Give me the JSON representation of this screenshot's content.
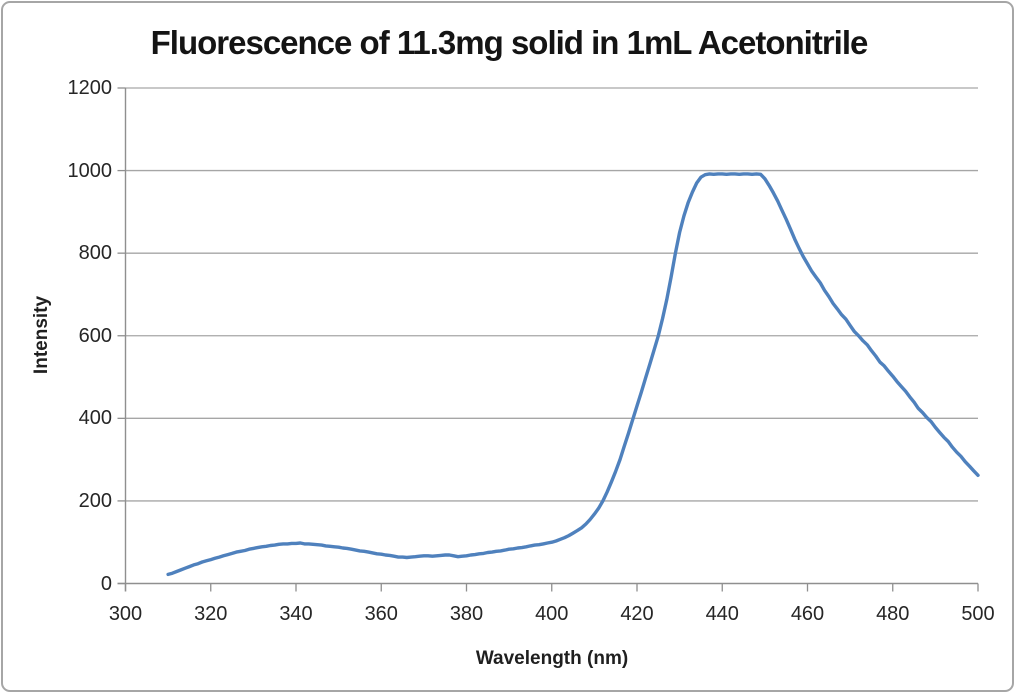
{
  "window": {
    "background": "#ffffff",
    "border_color": "#a6a6a6"
  },
  "chart_data": {
    "type": "line",
    "title": "Fluorescence of 11.3mg solid in 1mL Acetonitrile",
    "xlabel": "Wavelength (nm)",
    "ylabel": "Intensity",
    "xlim": [
      300,
      500
    ],
    "ylim": [
      0,
      1200
    ],
    "x_ticks": [
      300,
      320,
      340,
      360,
      380,
      400,
      420,
      440,
      460,
      480,
      500
    ],
    "y_ticks": [
      0,
      200,
      400,
      600,
      800,
      1000,
      1200
    ],
    "grid": true,
    "legend_position": "none",
    "line_color": "#4f81bd",
    "gridline_color": "#a6a6a6",
    "axis_color": "#8f8f8f",
    "tick_text_color": "#262626",
    "series": [
      {
        "points": [
          [
            310,
            22
          ],
          [
            311,
            25
          ],
          [
            312,
            29
          ],
          [
            313,
            33
          ],
          [
            314,
            37
          ],
          [
            315,
            41
          ],
          [
            316,
            45
          ],
          [
            317,
            48
          ],
          [
            318,
            52
          ],
          [
            319,
            55
          ],
          [
            320,
            58
          ],
          [
            321,
            61
          ],
          [
            322,
            64
          ],
          [
            323,
            67
          ],
          [
            324,
            70
          ],
          [
            325,
            73
          ],
          [
            326,
            76
          ],
          [
            327,
            78
          ],
          [
            328,
            80
          ],
          [
            329,
            83
          ],
          [
            330,
            85
          ],
          [
            331,
            87
          ],
          [
            332,
            89
          ],
          [
            333,
            90
          ],
          [
            334,
            92
          ],
          [
            335,
            93
          ],
          [
            336,
            95
          ],
          [
            337,
            96
          ],
          [
            338,
            96
          ],
          [
            339,
            97
          ],
          [
            340,
            97
          ],
          [
            341,
            98
          ],
          [
            342,
            96
          ],
          [
            343,
            96
          ],
          [
            344,
            95
          ],
          [
            345,
            94
          ],
          [
            346,
            93
          ],
          [
            347,
            91
          ],
          [
            348,
            90
          ],
          [
            349,
            89
          ],
          [
            350,
            88
          ],
          [
            351,
            86
          ],
          [
            352,
            85
          ],
          [
            353,
            83
          ],
          [
            354,
            81
          ],
          [
            355,
            79
          ],
          [
            356,
            78
          ],
          [
            357,
            76
          ],
          [
            358,
            74
          ],
          [
            359,
            72
          ],
          [
            360,
            71
          ],
          [
            361,
            69
          ],
          [
            362,
            68
          ],
          [
            363,
            66
          ],
          [
            364,
            64
          ],
          [
            365,
            64
          ],
          [
            366,
            63
          ],
          [
            367,
            64
          ],
          [
            368,
            65
          ],
          [
            369,
            66
          ],
          [
            370,
            67
          ],
          [
            371,
            67
          ],
          [
            372,
            66
          ],
          [
            373,
            67
          ],
          [
            374,
            68
          ],
          [
            375,
            69
          ],
          [
            376,
            69
          ],
          [
            377,
            67
          ],
          [
            378,
            65
          ],
          [
            379,
            66
          ],
          [
            380,
            67
          ],
          [
            381,
            69
          ],
          [
            382,
            70
          ],
          [
            383,
            72
          ],
          [
            384,
            73
          ],
          [
            385,
            75
          ],
          [
            386,
            76
          ],
          [
            387,
            78
          ],
          [
            388,
            79
          ],
          [
            389,
            81
          ],
          [
            390,
            83
          ],
          [
            391,
            84
          ],
          [
            392,
            86
          ],
          [
            393,
            87
          ],
          [
            394,
            89
          ],
          [
            395,
            91
          ],
          [
            396,
            93
          ],
          [
            397,
            94
          ],
          [
            398,
            96
          ],
          [
            399,
            98
          ],
          [
            400,
            100
          ],
          [
            401,
            103
          ],
          [
            402,
            107
          ],
          [
            403,
            111
          ],
          [
            404,
            116
          ],
          [
            405,
            122
          ],
          [
            406,
            128
          ],
          [
            407,
            135
          ],
          [
            408,
            144
          ],
          [
            409,
            155
          ],
          [
            410,
            168
          ],
          [
            411,
            182
          ],
          [
            412,
            200
          ],
          [
            413,
            222
          ],
          [
            414,
            246
          ],
          [
            415,
            272
          ],
          [
            416,
            300
          ],
          [
            417,
            332
          ],
          [
            418,
            364
          ],
          [
            419,
            397
          ],
          [
            420,
            430
          ],
          [
            421,
            463
          ],
          [
            422,
            497
          ],
          [
            423,
            531
          ],
          [
            424,
            565
          ],
          [
            425,
            600
          ],
          [
            426,
            642
          ],
          [
            427,
            688
          ],
          [
            428,
            742
          ],
          [
            429,
            800
          ],
          [
            430,
            850
          ],
          [
            431,
            890
          ],
          [
            432,
            922
          ],
          [
            433,
            948
          ],
          [
            434,
            970
          ],
          [
            435,
            984
          ],
          [
            436,
            990
          ],
          [
            437,
            992
          ],
          [
            438,
            991
          ],
          [
            439,
            992
          ],
          [
            440,
            992
          ],
          [
            441,
            991
          ],
          [
            442,
            992
          ],
          [
            443,
            992
          ],
          [
            444,
            991
          ],
          [
            445,
            992
          ],
          [
            446,
            992
          ],
          [
            447,
            991
          ],
          [
            448,
            992
          ],
          [
            449,
            991
          ],
          [
            450,
            980
          ],
          [
            451,
            964
          ],
          [
            452,
            946
          ],
          [
            453,
            926
          ],
          [
            454,
            904
          ],
          [
            455,
            882
          ],
          [
            456,
            858
          ],
          [
            457,
            834
          ],
          [
            458,
            812
          ],
          [
            459,
            792
          ],
          [
            460,
            774
          ],
          [
            461,
            756
          ],
          [
            462,
            742
          ],
          [
            463,
            728
          ],
          [
            464,
            710
          ],
          [
            465,
            695
          ],
          [
            466,
            678
          ],
          [
            467,
            665
          ],
          [
            468,
            651
          ],
          [
            469,
            640
          ],
          [
            470,
            625
          ],
          [
            471,
            610
          ],
          [
            472,
            600
          ],
          [
            473,
            588
          ],
          [
            474,
            578
          ],
          [
            475,
            564
          ],
          [
            476,
            551
          ],
          [
            477,
            536
          ],
          [
            478,
            527
          ],
          [
            479,
            514
          ],
          [
            480,
            502
          ],
          [
            481,
            489
          ],
          [
            482,
            477
          ],
          [
            483,
            466
          ],
          [
            484,
            452
          ],
          [
            485,
            439
          ],
          [
            486,
            424
          ],
          [
            487,
            414
          ],
          [
            488,
            402
          ],
          [
            489,
            392
          ],
          [
            490,
            378
          ],
          [
            491,
            366
          ],
          [
            492,
            354
          ],
          [
            493,
            344
          ],
          [
            494,
            330
          ],
          [
            495,
            318
          ],
          [
            496,
            308
          ],
          [
            497,
            295
          ],
          [
            498,
            284
          ],
          [
            499,
            273
          ],
          [
            500,
            262
          ]
        ]
      }
    ]
  }
}
